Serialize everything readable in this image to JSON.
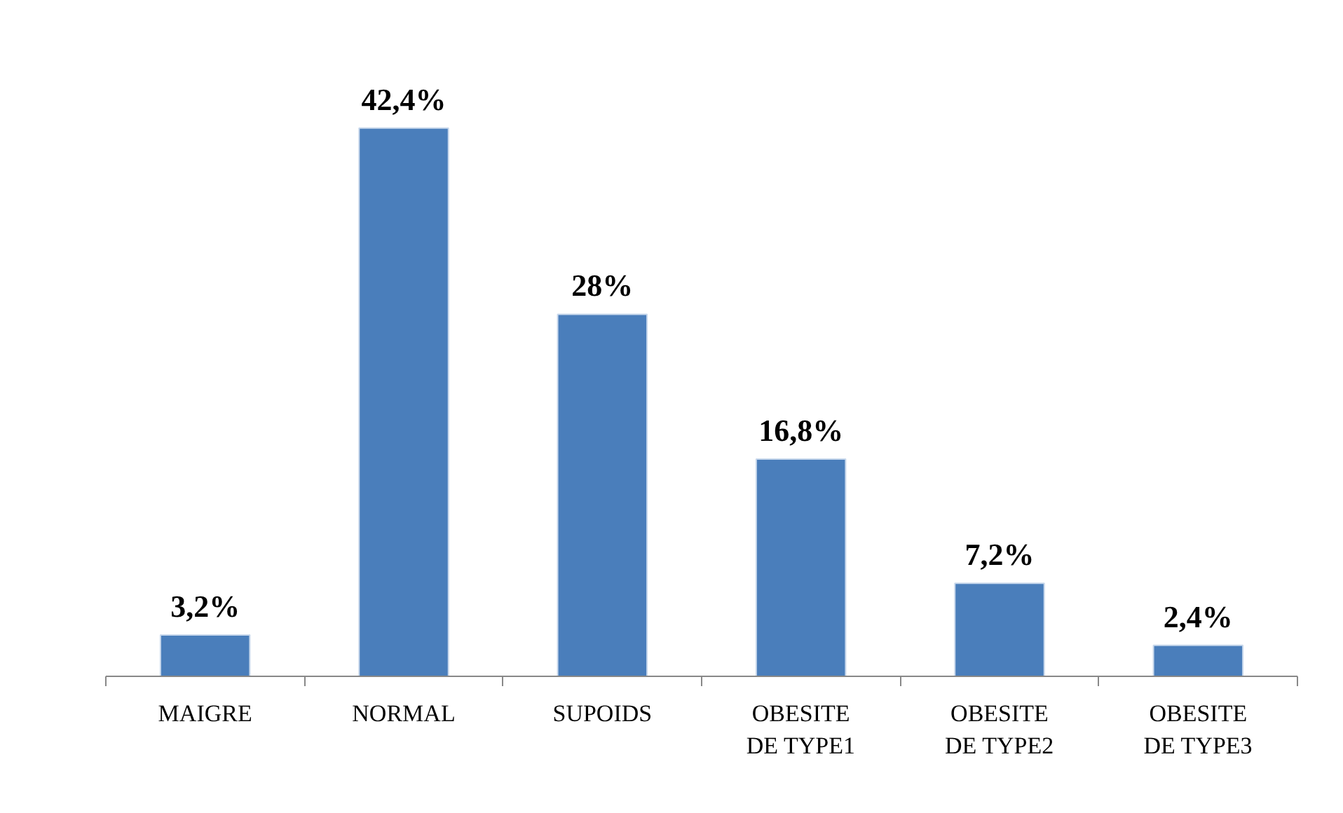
{
  "chart_data": {
    "type": "bar",
    "categories": [
      "MAIGRE",
      "NORMAL",
      "SUPOIDS",
      "OBESITE\nDE TYPE1",
      "OBESITE\nDE TYPE2",
      "OBESITE\nDE TYPE3"
    ],
    "values": [
      3.2,
      42.4,
      28,
      16.8,
      7.2,
      2.4
    ],
    "value_labels": [
      "3,2%",
      "42,4%",
      "28%",
      "16,8%",
      "7,2%",
      "2,4%"
    ],
    "color": "#4a7ebb"
  }
}
